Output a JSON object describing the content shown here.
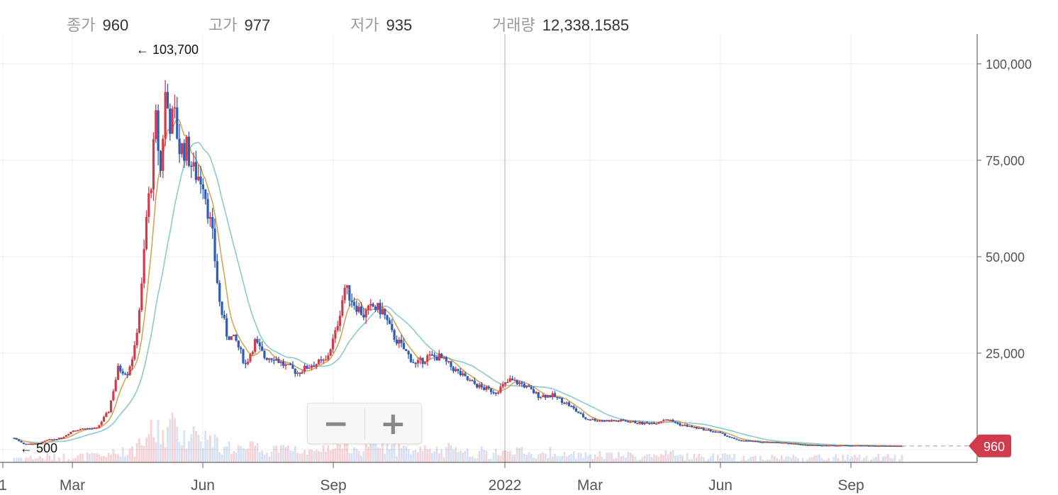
{
  "header": {
    "close_label": "종가",
    "close_value": "960",
    "high_label": "고가",
    "high_value": "977",
    "low_label": "저가",
    "low_value": "935",
    "volume_label": "거래량",
    "volume_value": "12,338.1585"
  },
  "zoom": {
    "minus": "−",
    "plus": "+"
  },
  "chart_data": {
    "type": "candlestick",
    "x_tick_labels": [
      "1",
      "Mar",
      "Jun",
      "Sep",
      "2022",
      "Mar",
      "Jun",
      "Sep"
    ],
    "y_tick_labels": [
      "25,000",
      "50,000",
      "75,000",
      "100,000"
    ],
    "y_ticks": [
      25000,
      50000,
      75000,
      100000
    ],
    "ylim": [
      -3000,
      107000
    ],
    "max_annotation": "← 103,700",
    "min_annotation": "← 500",
    "last_price_label": "960",
    "last_price": 960,
    "up_color": "#d13b4b",
    "down_color": "#2f5cb8",
    "ma_short_color": "#d2a55c",
    "ma_long_color": "#8cc8d2",
    "grid": true,
    "price_path": [
      {
        "t": 0,
        "p": 3000
      },
      {
        "t": 4,
        "p": 1500
      },
      {
        "t": 10,
        "p": 1500
      },
      {
        "t": 14,
        "p": 2500
      },
      {
        "t": 20,
        "p": 3000
      },
      {
        "t": 25,
        "p": 5000
      },
      {
        "t": 30,
        "p": 5500
      },
      {
        "t": 35,
        "p": 5500
      },
      {
        "t": 40,
        "p": 10000
      },
      {
        "t": 44,
        "p": 21000
      },
      {
        "t": 48,
        "p": 20000
      },
      {
        "t": 51,
        "p": 26000
      },
      {
        "t": 54,
        "p": 42000
      },
      {
        "t": 56,
        "p": 60000
      },
      {
        "t": 58,
        "p": 70000
      },
      {
        "t": 60,
        "p": 85000
      },
      {
        "t": 62,
        "p": 72000
      },
      {
        "t": 64,
        "p": 92000
      },
      {
        "t": 66,
        "p": 85000
      },
      {
        "t": 68,
        "p": 86000
      },
      {
        "t": 70,
        "p": 78000
      },
      {
        "t": 73,
        "p": 78000
      },
      {
        "t": 76,
        "p": 72000
      },
      {
        "t": 80,
        "p": 70000
      },
      {
        "t": 84,
        "p": 55000
      },
      {
        "t": 87,
        "p": 38000
      },
      {
        "t": 90,
        "p": 30000
      },
      {
        "t": 94,
        "p": 28000
      },
      {
        "t": 98,
        "p": 22000
      },
      {
        "t": 102,
        "p": 28000
      },
      {
        "t": 106,
        "p": 24000
      },
      {
        "t": 110,
        "p": 24000
      },
      {
        "t": 114,
        "p": 22000
      },
      {
        "t": 120,
        "p": 20000
      },
      {
        "t": 126,
        "p": 22000
      },
      {
        "t": 132,
        "p": 23000
      },
      {
        "t": 136,
        "p": 30000
      },
      {
        "t": 140,
        "p": 42000
      },
      {
        "t": 144,
        "p": 38000
      },
      {
        "t": 148,
        "p": 35000
      },
      {
        "t": 152,
        "p": 37000
      },
      {
        "t": 156,
        "p": 36000
      },
      {
        "t": 160,
        "p": 30000
      },
      {
        "t": 165,
        "p": 26000
      },
      {
        "t": 170,
        "p": 22000
      },
      {
        "t": 175,
        "p": 24000
      },
      {
        "t": 180,
        "p": 24000
      },
      {
        "t": 186,
        "p": 21000
      },
      {
        "t": 192,
        "p": 18000
      },
      {
        "t": 198,
        "p": 16000
      },
      {
        "t": 204,
        "p": 15000
      },
      {
        "t": 210,
        "p": 18000
      },
      {
        "t": 215,
        "p": 17000
      },
      {
        "t": 222,
        "p": 14000
      },
      {
        "t": 228,
        "p": 14000
      },
      {
        "t": 234,
        "p": 12000
      },
      {
        "t": 242,
        "p": 8000
      },
      {
        "t": 250,
        "p": 7500
      },
      {
        "t": 258,
        "p": 7500
      },
      {
        "t": 266,
        "p": 6800
      },
      {
        "t": 272,
        "p": 7000
      },
      {
        "t": 276,
        "p": 8000
      },
      {
        "t": 282,
        "p": 6500
      },
      {
        "t": 290,
        "p": 5500
      },
      {
        "t": 298,
        "p": 4500
      },
      {
        "t": 306,
        "p": 2500
      },
      {
        "t": 316,
        "p": 2000
      },
      {
        "t": 326,
        "p": 1800
      },
      {
        "t": 336,
        "p": 1200
      },
      {
        "t": 346,
        "p": 1100
      },
      {
        "t": 356,
        "p": 1100
      },
      {
        "t": 366,
        "p": 1000
      },
      {
        "t": 376,
        "p": 960
      }
    ]
  }
}
